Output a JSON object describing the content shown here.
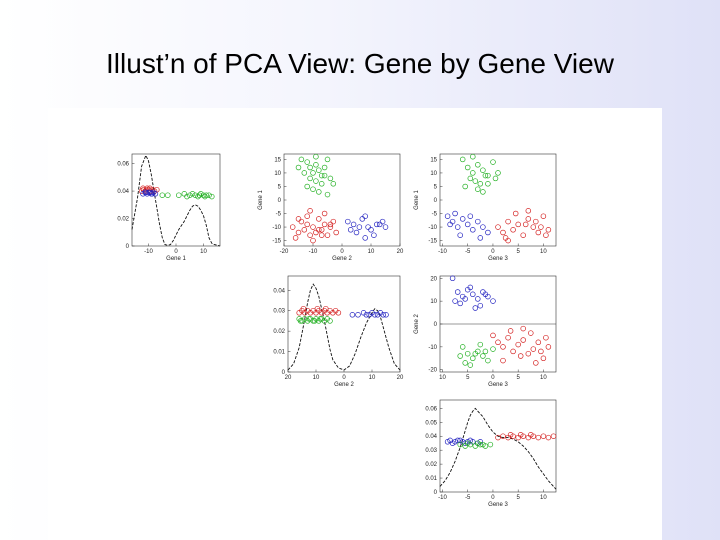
{
  "slide": {
    "title": "Illust’n of PCA View: Gene by Gene View"
  },
  "colors": {
    "red": "#d42020",
    "green": "#22b022",
    "blue": "#2222c0",
    "density": "#111111"
  },
  "chart_data": [
    {
      "id": "diag-gene1",
      "type": "scatter",
      "panel": "density",
      "xlabel": "Gene 1",
      "xticks": [
        -10,
        0,
        10
      ],
      "yticks": [
        0,
        0.02,
        0.04,
        0.06
      ],
      "ytick_labels": [
        "0",
        "0.02",
        "0.04",
        "0.06"
      ],
      "xlim": [
        -16,
        16
      ],
      "ylim": [
        0,
        0.067
      ],
      "jitter_y": 0.04,
      "density_x": [
        -16,
        -14,
        -12.5,
        -11,
        -10,
        -9,
        -8,
        -7,
        -6,
        -5,
        -4,
        -3,
        -2,
        -1,
        0,
        1,
        2,
        3,
        4,
        5,
        6,
        7,
        8,
        9,
        10,
        11,
        12,
        13,
        14,
        15,
        16
      ],
      "density_y": [
        0.012,
        0.035,
        0.058,
        0.066,
        0.062,
        0.052,
        0.04,
        0.028,
        0.016,
        0.006,
        0.001,
        0.0005,
        0.001,
        0.004,
        0.008,
        0.012,
        0.015,
        0.018,
        0.022,
        0.026,
        0.029,
        0.03,
        0.029,
        0.026,
        0.022,
        0.015,
        0.006,
        0.002,
        0.001,
        0.0005,
        0
      ],
      "series": [
        {
          "color": "red",
          "x": [
            -12.5,
            -11.8,
            -11,
            -10.5,
            -9.8,
            -9.2,
            -8.5,
            -7.8,
            -7,
            -12,
            -10.8,
            -9.5
          ],
          "y": [
            0.04,
            0.041,
            0.04,
            0.042,
            0.041,
            0.04,
            0.041,
            0.04,
            0.041,
            0.042,
            0.041,
            0.042
          ]
        },
        {
          "color": "blue",
          "x": [
            -12,
            -11.2,
            -10.5,
            -9.8,
            -9,
            -8.2,
            -7.5,
            -10.9,
            -9.3,
            -8.7
          ],
          "y": [
            0.038,
            0.039,
            0.038,
            0.039,
            0.038,
            0.039,
            0.038,
            0.039,
            0.039,
            0.038
          ]
        },
        {
          "color": "green",
          "x": [
            -5,
            -3,
            1,
            3,
            4,
            5,
            6,
            7,
            8,
            8.5,
            9,
            10,
            10.5,
            11,
            12,
            13
          ],
          "y": [
            0.037,
            0.037,
            0.037,
            0.038,
            0.036,
            0.037,
            0.038,
            0.037,
            0.036,
            0.037,
            0.038,
            0.037,
            0.036,
            0.037,
            0.037,
            0.036
          ]
        }
      ]
    },
    {
      "id": "g1-vs-g2",
      "type": "scatter",
      "panel": "scatter",
      "xlabel": "Gene 2",
      "ylabel": "Gene 1",
      "xticks": [
        -20,
        -10,
        0,
        10,
        20
      ],
      "yticks": [
        -15,
        -10,
        -5,
        0,
        5,
        10,
        15
      ],
      "xlim": [
        -20,
        20
      ],
      "ylim": [
        -17,
        17
      ],
      "series": [
        {
          "color": "green",
          "x": [
            -14,
            -12,
            -11,
            -10,
            -9,
            -8,
            -7,
            -6,
            -5,
            -4,
            -13,
            -11,
            -9,
            -7,
            -6,
            -10,
            -8,
            -12,
            -5,
            -3,
            -15,
            -9
          ],
          "y": [
            15,
            14,
            12,
            10,
            13,
            11,
            9,
            12,
            15,
            8,
            10,
            8,
            7,
            6,
            9,
            4,
            3,
            5,
            2,
            6,
            12,
            16
          ]
        },
        {
          "color": "red",
          "x": [
            -17,
            -15,
            -14,
            -13,
            -12,
            -11,
            -10,
            -9,
            -8,
            -7,
            -6,
            -5,
            -4,
            -3,
            -2,
            -16,
            -12,
            -10,
            -8,
            -6,
            -4,
            -15,
            -11,
            -7
          ],
          "y": [
            -10,
            -12,
            -8,
            -11,
            -9,
            -13,
            -10,
            -12,
            -7,
            -11,
            -9,
            -13,
            -10,
            -8,
            -12,
            -14,
            -6,
            -15,
            -11,
            -5,
            -9,
            -7,
            -4,
            -13
          ]
        },
        {
          "color": "blue",
          "x": [
            2,
            4,
            6,
            8,
            10,
            12,
            14,
            5,
            7,
            9,
            11,
            13,
            3,
            8,
            15
          ],
          "y": [
            -8,
            -9,
            -10,
            -6,
            -11,
            -9,
            -8,
            -12,
            -7,
            -10,
            -13,
            -9,
            -11,
            -14,
            -10
          ]
        }
      ]
    },
    {
      "id": "g1-vs-g3",
      "type": "scatter",
      "panel": "scatter",
      "xlabel": "Gene 3",
      "ylabel": "Gene 1",
      "xticks": [
        -10,
        -5,
        0,
        5,
        10
      ],
      "yticks": [
        -15,
        -10,
        -5,
        0,
        5,
        10,
        15
      ],
      "xlim": [
        -10.5,
        12.5
      ],
      "ylim": [
        -17,
        17
      ],
      "series": [
        {
          "color": "green",
          "x": [
            -6,
            -5,
            -4,
            -3,
            -2,
            -1,
            0,
            -4.5,
            -3.5,
            -2.5,
            -1.5,
            -5.5,
            -3,
            -2,
            -1,
            0.5,
            1,
            -4
          ],
          "y": [
            15,
            12,
            10,
            13,
            11,
            9,
            14,
            8,
            7,
            6,
            9,
            5,
            4,
            3,
            6,
            8,
            10,
            16
          ]
        },
        {
          "color": "red",
          "x": [
            1,
            2,
            3,
            4,
            5,
            6,
            7,
            8,
            9,
            10,
            11,
            2.5,
            4.5,
            6.5,
            8.5,
            10.5,
            3,
            7,
            9.5
          ],
          "y": [
            -10,
            -12,
            -8,
            -11,
            -9,
            -13,
            -7,
            -10,
            -12,
            -6,
            -11,
            -14,
            -5,
            -9,
            -8,
            -13,
            -15,
            -4,
            -10
          ]
        },
        {
          "color": "blue",
          "x": [
            -9,
            -8,
            -7,
            -6,
            -5,
            -4,
            -3,
            -2,
            -1,
            -8.5,
            -6.5,
            -4.5,
            -2.5,
            -7.5
          ],
          "y": [
            -6,
            -8,
            -10,
            -7,
            -9,
            -11,
            -8,
            -10,
            -12,
            -9,
            -13,
            -6,
            -14,
            -5
          ]
        }
      ]
    },
    {
      "id": "diag-gene2",
      "type": "scatter",
      "panel": "density",
      "xlabel": "Gene 2",
      "xticks": [
        -20,
        -10,
        0,
        10,
        20
      ],
      "xtick_labels": [
        "20",
        "10",
        "0",
        "10",
        "20"
      ],
      "yticks": [
        0,
        0.01,
        0.02,
        0.03,
        0.04
      ],
      "ytick_labels": [
        "0",
        "0.01",
        "0.02",
        "0.03",
        "0.04"
      ],
      "xlim": [
        -20,
        20
      ],
      "ylim": [
        0,
        0.047
      ],
      "density_x": [
        -20,
        -18,
        -16,
        -14,
        -13,
        -12,
        -11,
        -10,
        -9,
        -8,
        -7,
        -6,
        -5,
        -4,
        -2,
        0,
        2,
        4,
        6,
        8,
        10,
        11,
        12,
        13,
        14,
        16,
        18,
        20
      ],
      "density_y": [
        0.001,
        0.004,
        0.012,
        0.026,
        0.034,
        0.04,
        0.043,
        0.041,
        0.037,
        0.031,
        0.025,
        0.018,
        0.011,
        0.006,
        0.002,
        0.001,
        0.003,
        0.009,
        0.017,
        0.024,
        0.029,
        0.031,
        0.03,
        0.027,
        0.022,
        0.012,
        0.004,
        0.001
      ],
      "series": [
        {
          "color": "red",
          "x": [
            -16,
            -15,
            -14,
            -13,
            -12,
            -11,
            -10,
            -9,
            -8,
            -7,
            -6,
            -5,
            -4,
            -3,
            -2,
            -14.5,
            -9.5,
            -6.5
          ],
          "y": [
            0.029,
            0.03,
            0.029,
            0.03,
            0.029,
            0.03,
            0.029,
            0.03,
            0.029,
            0.03,
            0.029,
            0.03,
            0.029,
            0.03,
            0.029,
            0.031,
            0.031,
            0.031
          ]
        },
        {
          "color": "green",
          "x": [
            -16,
            -15,
            -14,
            -13,
            -12,
            -11,
            -10,
            -9,
            -8,
            -7,
            -6,
            -5,
            -15.5,
            -12.5,
            -10.5,
            -8.5
          ],
          "y": [
            0.026,
            0.025,
            0.026,
            0.025,
            0.026,
            0.025,
            0.026,
            0.025,
            0.026,
            0.025,
            0.026,
            0.025,
            0.025,
            0.026,
            0.025,
            0.026
          ]
        },
        {
          "color": "blue",
          "x": [
            3,
            5,
            7,
            8,
            9,
            10,
            11,
            12,
            13,
            14,
            15
          ],
          "y": [
            0.028,
            0.028,
            0.029,
            0.028,
            0.028,
            0.029,
            0.028,
            0.028,
            0.029,
            0.028,
            0.028
          ]
        }
      ]
    },
    {
      "id": "g2-vs-g3",
      "type": "scatter",
      "panel": "scatter",
      "xlabel": "Gene 3",
      "ylabel": "Gene 2",
      "xticks": [
        -10,
        -5,
        0,
        5,
        10
      ],
      "xtick_labels": [
        "10",
        "5",
        "0",
        "5",
        "10"
      ],
      "yticks": [
        -20,
        -10,
        0,
        10,
        20
      ],
      "xlim": [
        -10.5,
        12.5
      ],
      "ylim": [
        -21,
        21
      ],
      "hline": 0,
      "series": [
        {
          "color": "blue",
          "x": [
            -8,
            -7,
            -6,
            -5,
            -4,
            -3,
            -2,
            -1,
            0,
            -6.5,
            -4.5,
            -2.5,
            -5.5,
            -3.5,
            -7.5,
            -1.5
          ],
          "y": [
            20,
            14,
            12,
            15,
            13,
            11,
            14,
            12,
            10,
            9,
            16,
            8,
            11,
            7,
            10,
            13
          ]
        },
        {
          "color": "red",
          "x": [
            0,
            1,
            2,
            3,
            4,
            5,
            6,
            7,
            8,
            9,
            10,
            11,
            3.5,
            5.5,
            7.5,
            9.5,
            2,
            6,
            10.5,
            8.5
          ],
          "y": [
            -5,
            -8,
            -10,
            -6,
            -12,
            -9,
            -7,
            -13,
            -11,
            -8,
            -15,
            -10,
            -3,
            -14,
            -4,
            -12,
            -16,
            -2,
            -6,
            -17
          ]
        },
        {
          "color": "green",
          "x": [
            -6,
            -5,
            -4,
            -3,
            -2,
            -1,
            0,
            -5.5,
            -3.5,
            -2.5,
            -4.5,
            -1.5,
            -6.5
          ],
          "y": [
            -10,
            -13,
            -15,
            -12,
            -14,
            -16,
            -11,
            -17,
            -13,
            -9,
            -18,
            -12,
            -14
          ]
        }
      ]
    },
    {
      "id": "diag-gene3",
      "type": "scatter",
      "panel": "density",
      "xlabel": "Gene 3",
      "xticks": [
        -10,
        -5,
        0,
        5,
        10
      ],
      "yticks": [
        0,
        0.01,
        0.02,
        0.03,
        0.04,
        0.05,
        0.06
      ],
      "ytick_labels": [
        "0",
        "0.01",
        "0.02",
        "0.03",
        "0.04",
        "0.05",
        "0.06"
      ],
      "xlim": [
        -10.5,
        12.5
      ],
      "ylim": [
        0,
        0.066
      ],
      "density_x": [
        -10.5,
        -9.5,
        -8.5,
        -7.5,
        -6.5,
        -5.5,
        -5,
        -4.5,
        -4,
        -3.5,
        -3,
        -2,
        -1,
        0,
        1,
        2,
        3,
        4,
        5,
        6,
        7,
        8,
        9,
        10,
        11,
        12,
        12.5
      ],
      "density_y": [
        0.004,
        0.008,
        0.014,
        0.022,
        0.032,
        0.044,
        0.05,
        0.055,
        0.058,
        0.06,
        0.058,
        0.054,
        0.048,
        0.043,
        0.04,
        0.039,
        0.039,
        0.038,
        0.036,
        0.033,
        0.029,
        0.024,
        0.018,
        0.013,
        0.008,
        0.004,
        0.002
      ],
      "series": [
        {
          "color": "blue",
          "x": [
            -9,
            -8,
            -7.5,
            -7,
            -6,
            -5.5,
            -5,
            -4.5,
            -4,
            -3,
            -2.5,
            -8.5,
            -6.5
          ],
          "y": [
            0.036,
            0.035,
            0.036,
            0.037,
            0.036,
            0.035,
            0.036,
            0.037,
            0.036,
            0.035,
            0.036,
            0.037,
            0.037
          ]
        },
        {
          "color": "green",
          "x": [
            -6.5,
            -5.5,
            -4.5,
            -3.5,
            -2.5,
            -1.5,
            -0.5,
            -5,
            -3,
            -2
          ],
          "y": [
            0.034,
            0.033,
            0.034,
            0.033,
            0.034,
            0.033,
            0.034,
            0.035,
            0.035,
            0.034
          ]
        },
        {
          "color": "red",
          "x": [
            1,
            2,
            3,
            4,
            5,
            6,
            7,
            8,
            9,
            10,
            11,
            12,
            3.5,
            5.5,
            7.5
          ],
          "y": [
            0.039,
            0.04,
            0.039,
            0.04,
            0.039,
            0.04,
            0.039,
            0.04,
            0.039,
            0.04,
            0.039,
            0.04,
            0.041,
            0.041,
            0.041
          ]
        }
      ]
    }
  ]
}
